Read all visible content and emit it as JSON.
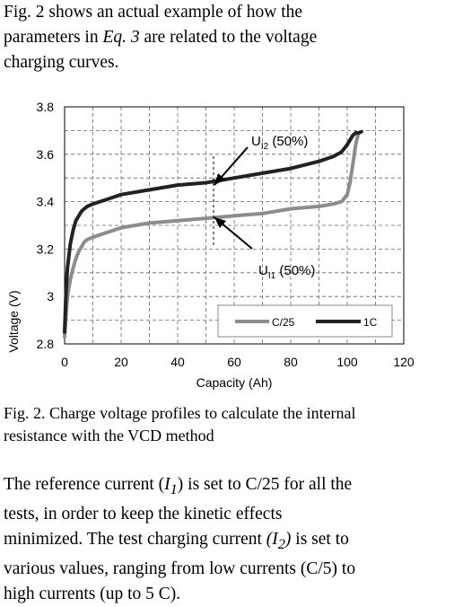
{
  "intro": {
    "line1_a": "Fig. 2 shows an actual example of how the",
    "line2_a": "parameters in ",
    "line2_em": "Eq. 3",
    "line2_b": " are related to the voltage",
    "line3": "charging curves."
  },
  "figure": {
    "caption_line1": "Fig. 2. Charge voltage profiles to calculate the internal",
    "caption_line2": "resistance with the VCD method"
  },
  "body": {
    "l1_a": "The reference current (",
    "l1_i": "I",
    "l1_sub": "1",
    "l1_b": ") is set to C/25 for all the",
    "l2": "tests, in order to keep the kinetic effects",
    "l3_a": "minimized. The test charging current ",
    "l3_i": "(I",
    "l3_sub": "2",
    "l3_b": ")",
    "l3_c": " is set to",
    "l4": "various values, ranging from low currents (C/5) to",
    "l5": "high currents (up to 5 C)."
  },
  "chart_data": {
    "type": "line",
    "title": "",
    "xlabel": "Capacity (Ah)",
    "ylabel": "Voltage (V)",
    "xlim": [
      0,
      120
    ],
    "ylim": [
      2.8,
      3.8
    ],
    "x_ticks": [
      "0",
      "20",
      "40",
      "60",
      "80",
      "100",
      "120"
    ],
    "y_ticks": [
      "2.8",
      "3",
      "3.2",
      "3.4",
      "3.6",
      "3.8"
    ],
    "grid": true,
    "legend_position": "lower-right",
    "series": [
      {
        "name": "C/25",
        "color": "#8c8c8c",
        "x": [
          0,
          0.5,
          1,
          2,
          3,
          4,
          5,
          6,
          7,
          8,
          10,
          15,
          20,
          30,
          40,
          50,
          60,
          70,
          80,
          90,
          95,
          98,
          100,
          101,
          102,
          103,
          104
        ],
        "y": [
          2.83,
          2.92,
          3.0,
          3.07,
          3.12,
          3.16,
          3.19,
          3.21,
          3.23,
          3.24,
          3.25,
          3.27,
          3.29,
          3.31,
          3.32,
          3.33,
          3.34,
          3.35,
          3.37,
          3.38,
          3.39,
          3.4,
          3.43,
          3.48,
          3.56,
          3.64,
          3.69
        ]
      },
      {
        "name": "1C",
        "color": "#222222",
        "x": [
          0,
          0.5,
          1,
          2,
          3,
          4,
          5,
          6,
          7,
          8,
          10,
          15,
          20,
          30,
          40,
          50,
          60,
          70,
          80,
          90,
          95,
          98,
          100,
          102,
          103,
          104,
          105
        ],
        "y": [
          2.85,
          3.02,
          3.12,
          3.22,
          3.28,
          3.32,
          3.34,
          3.36,
          3.37,
          3.38,
          3.39,
          3.41,
          3.43,
          3.45,
          3.47,
          3.48,
          3.5,
          3.52,
          3.54,
          3.57,
          3.59,
          3.61,
          3.64,
          3.68,
          3.69,
          3.69,
          3.695
        ]
      }
    ],
    "annotations": [
      {
        "base": "U",
        "sub": "I2",
        "tail": " (50%)"
      },
      {
        "base": "U",
        "sub": "I1",
        "tail": " (50%)"
      }
    ]
  }
}
